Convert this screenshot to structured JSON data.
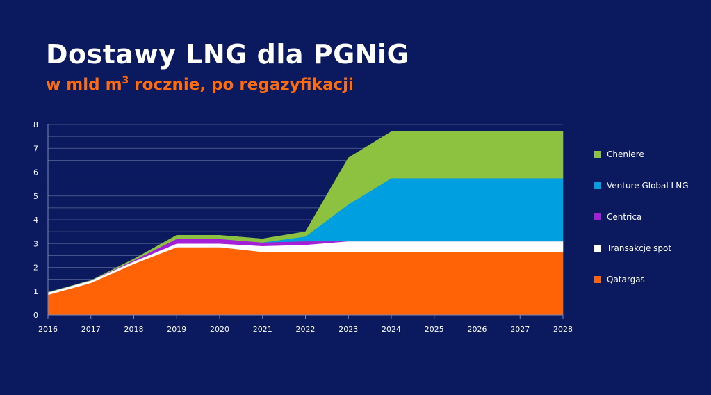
{
  "title": "Dostawy LNG dla PGNiG",
  "subtitle_pre": "w mld m",
  "subtitle_sup": "3",
  "subtitle_post": " rocznie, po regazyfikacji",
  "chart_data": {
    "type": "area",
    "stacked": true,
    "x": [
      2016,
      2017,
      2018,
      2019,
      2020,
      2021,
      2022,
      2023,
      2024,
      2025,
      2026,
      2027,
      2028
    ],
    "x_ticks": [
      "2016",
      "2017",
      "2018",
      "2019",
      "2020",
      "2021",
      "2022",
      "2023",
      "2024",
      "2025",
      "2026",
      "2027",
      "2028"
    ],
    "y_ticks": [
      "0",
      "1",
      "2",
      "3",
      "4",
      "5",
      "6",
      "7",
      "8"
    ],
    "ylim": [
      0,
      8
    ],
    "grid": true,
    "legend_position": "right",
    "series": [
      {
        "name": "Qatargas",
        "color": "#ff6305",
        "values": [
          0.85,
          1.35,
          2.15,
          2.85,
          2.85,
          2.65,
          2.65,
          2.65,
          2.65,
          2.65,
          2.65,
          2.65,
          2.65
        ]
      },
      {
        "name": "Transakcje spot",
        "color": "#ffffff",
        "values": [
          0.1,
          0.1,
          0.1,
          0.15,
          0.15,
          0.25,
          0.3,
          0.45,
          0.45,
          0.45,
          0.45,
          0.45,
          0.45
        ]
      },
      {
        "name": "Centrica",
        "color": "#a41fd6",
        "values": [
          0.0,
          0.0,
          0.05,
          0.2,
          0.2,
          0.15,
          0.15,
          0.0,
          0.0,
          0.0,
          0.0,
          0.0,
          0.0
        ]
      },
      {
        "name": "Venture Global LNG",
        "color": "#009fe0",
        "values": [
          0.0,
          0.0,
          0.0,
          0.0,
          0.0,
          0.0,
          0.2,
          1.55,
          2.65,
          2.65,
          2.65,
          2.65,
          2.65
        ]
      },
      {
        "name": "Cheniere",
        "color": "#8cc23f",
        "values": [
          0.0,
          0.0,
          0.05,
          0.15,
          0.15,
          0.15,
          0.2,
          1.95,
          1.95,
          1.95,
          1.95,
          1.95,
          1.95
        ]
      }
    ],
    "legend_order": [
      "Cheniere",
      "Venture Global LNG",
      "Centrica",
      "Transakcje spot",
      "Qatargas"
    ]
  }
}
